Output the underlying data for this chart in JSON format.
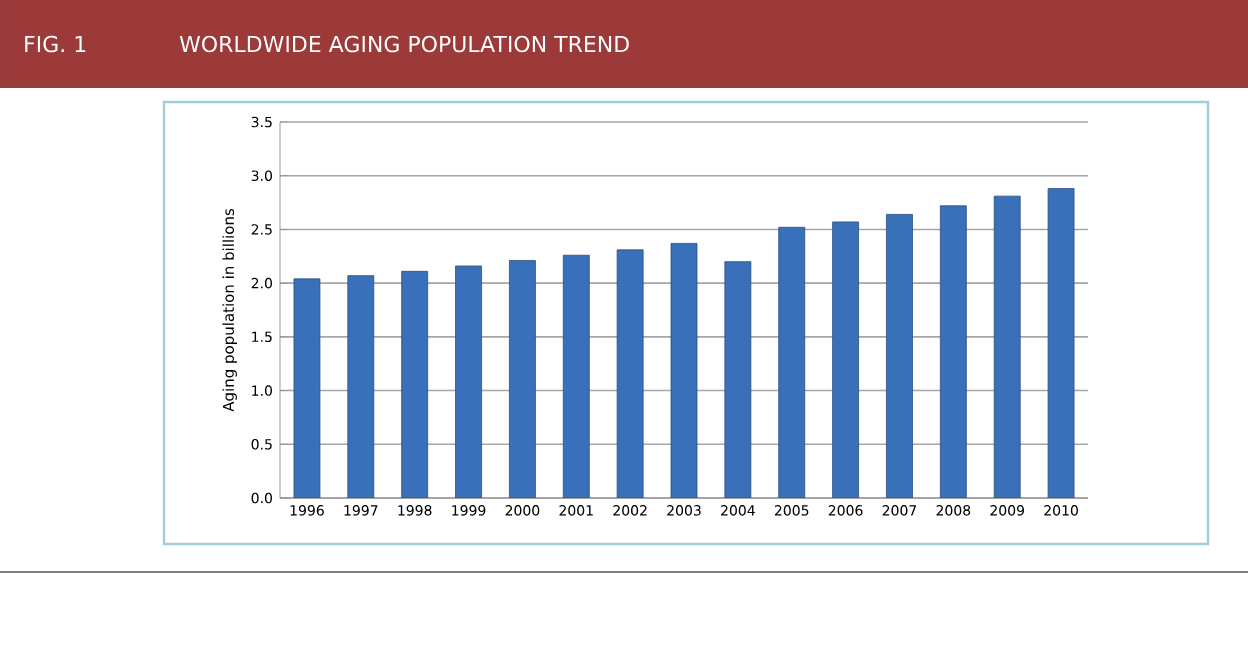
{
  "chart_data": {
    "type": "bar",
    "title": "WORLDWIDE AGING POPULATION TREND",
    "annotations": [
      "FIG. 1"
    ],
    "ylabel": "Aging population  in billions",
    "categories": [
      "1996",
      "1997",
      "1998",
      "1999",
      "2000",
      "2001",
      "2002",
      "2003",
      "2004",
      "2005",
      "2006",
      "2007",
      "2008",
      "2009",
      "2010"
    ],
    "values": [
      2.04,
      2.07,
      2.11,
      2.16,
      2.21,
      2.26,
      2.31,
      2.37,
      2.2,
      2.52,
      2.57,
      2.64,
      2.72,
      2.81,
      2.88
    ],
    "color": "#3a6fba",
    "ylim": [
      0,
      3.5
    ],
    "yticks": [
      {
        "value": 0,
        "label": "0.0"
      },
      {
        "value": 0.5,
        "label": "0.5"
      },
      {
        "value": 1,
        "label": "1.0"
      },
      {
        "value": 1.5,
        "label": "1.5"
      },
      {
        "value": 2,
        "label": "2.0"
      },
      {
        "value": 2.5,
        "label": "2.5"
      },
      {
        "value": 3,
        "label": "3.0"
      },
      {
        "value": 3.5,
        "label": "3.5"
      }
    ],
    "grid": "y"
  }
}
